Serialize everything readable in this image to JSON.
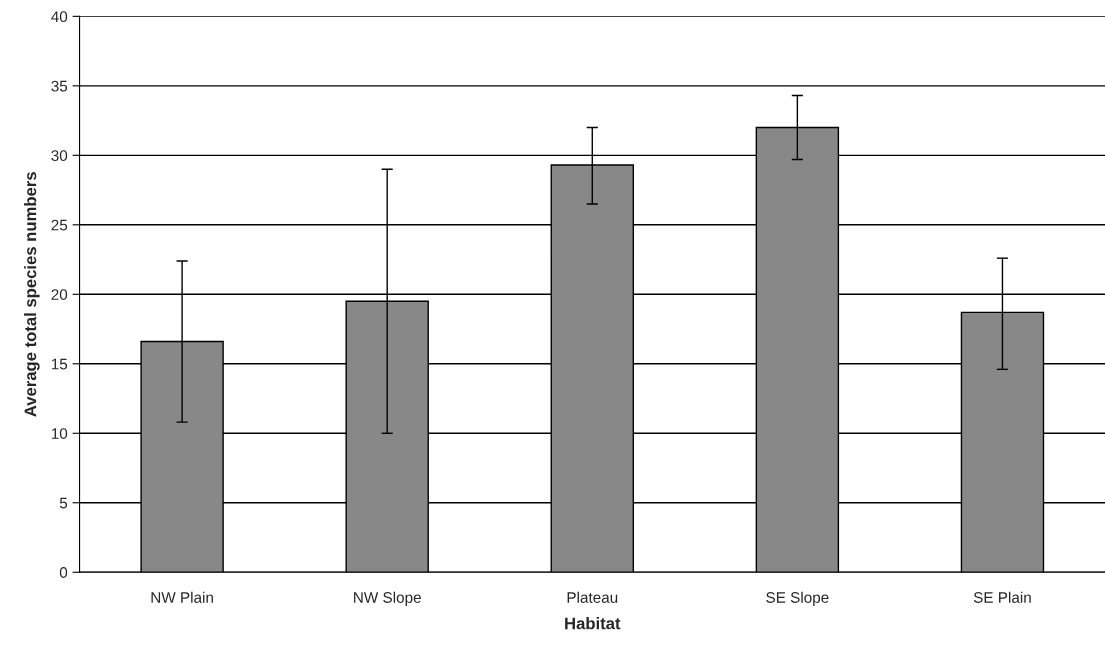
{
  "chart_data": {
    "type": "bar",
    "xlabel": "Habitat",
    "ylabel": "Average total species numbers",
    "categories": [
      "NW Plain",
      "NW Slope",
      "Plateau",
      "SE Slope",
      "SE Plain"
    ],
    "values": [
      16.6,
      19.5,
      29.3,
      32.0,
      18.7
    ],
    "errors": [
      [
        10.8,
        22.4
      ],
      [
        10.0,
        29.0
      ],
      [
        26.5,
        32.0
      ],
      [
        29.7,
        34.3
      ],
      [
        14.6,
        22.6
      ]
    ],
    "color": "#888888",
    "ylim": [
      0,
      40
    ],
    "yticks": [
      0,
      5,
      10,
      15,
      20,
      25,
      30,
      35,
      40
    ],
    "grid": "y",
    "legend": false
  }
}
